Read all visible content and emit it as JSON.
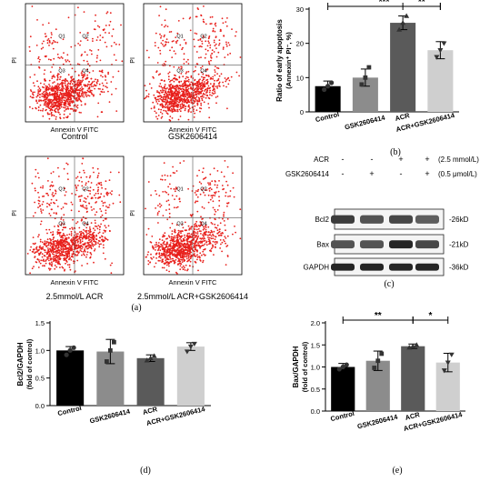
{
  "flow_panels": [
    {
      "caption": "Control",
      "x_axis_label": "Annexin V FITC",
      "y_axis_label": "PI",
      "quadrants": [
        "Q1",
        "Q2",
        "Q3",
        "Q4"
      ]
    },
    {
      "caption": "GSK2606414",
      "x_axis_label": "Annexin V FITC",
      "y_axis_label": "PI",
      "quadrants": [
        "Q1",
        "Q2",
        "Q3",
        "Q4"
      ]
    },
    {
      "caption": "2.5mmol/L ACR",
      "x_axis_label": "Annexin V FITC",
      "y_axis_label": "PI",
      "quadrants": [
        "Q1",
        "Q2",
        "Q3",
        "Q4"
      ]
    },
    {
      "caption": "2.5mmol/L ACR+GSK2606414",
      "x_axis_label": "Annexin V FITC",
      "y_axis_label": "PI",
      "quadrants": [
        "Q1",
        "Q2",
        "Q3",
        "Q4"
      ]
    }
  ],
  "panel_labels": {
    "a": "(a)",
    "b": "(b)",
    "c": "(c)",
    "d": "(d)",
    "e": "(e)"
  },
  "western": {
    "conditions": [
      {
        "label": "ACR",
        "values": [
          "-",
          "-",
          "+",
          "+"
        ],
        "unit": "(2.5 mmol/L)"
      },
      {
        "label": "GSK2606414",
        "values": [
          "-",
          "+",
          "-",
          "+"
        ],
        "unit": "(0.5 μmol/L)"
      }
    ],
    "blots": [
      {
        "protein": "Bcl2",
        "size": "-26kD"
      },
      {
        "protein": "Bax",
        "size": "-21kD"
      },
      {
        "protein": "GAPDH",
        "size": "-36kD"
      }
    ]
  },
  "chart_data": [
    {
      "id": "b",
      "type": "bar",
      "categories": [
        "Control",
        "GSK2606414",
        "ACR",
        "ACR+GSK2606414"
      ],
      "values": [
        7.5,
        10,
        26,
        18
      ],
      "errors": [
        1.5,
        2.5,
        2,
        2.5
      ],
      "points": [
        [
          6.5,
          7.5,
          8.5
        ],
        [
          8,
          10,
          13
        ],
        [
          24,
          26,
          28
        ],
        [
          16,
          18,
          20
        ]
      ],
      "bar_colors": [
        "#000000",
        "#8c8c8c",
        "#5a5a5a",
        "#cfcfcf"
      ],
      "title": "",
      "ylabel": "Ratio of early apoptosis",
      "ylabel_line2": "(Annexin⁺ PI⁻, %)",
      "ylim": [
        0,
        30
      ],
      "yticks": [
        0,
        10,
        20,
        30
      ],
      "significance": [
        {
          "from": 0,
          "to": 3,
          "label": "***"
        },
        {
          "from": 2,
          "to": 3,
          "label": "**"
        }
      ]
    },
    {
      "id": "d",
      "type": "bar",
      "categories": [
        "Control",
        "GSK2606414",
        "ACR",
        "ACR+GSK2606414"
      ],
      "values": [
        1.0,
        0.98,
        0.86,
        1.07
      ],
      "errors": [
        0.07,
        0.22,
        0.06,
        0.07
      ],
      "points": [
        [
          0.92,
          1.0,
          1.05
        ],
        [
          0.8,
          1.0,
          1.15
        ],
        [
          0.82,
          0.86,
          0.9
        ],
        [
          0.98,
          1.07,
          1.12
        ]
      ],
      "bar_colors": [
        "#000000",
        "#8c8c8c",
        "#5a5a5a",
        "#cfcfcf"
      ],
      "title": "",
      "ylabel": "Bcl2/GAPDH",
      "ylabel_line2": "(fold of control)",
      "ylim": [
        0,
        1.5
      ],
      "yticks": [
        0.0,
        0.5,
        1.0,
        1.5
      ],
      "significance": []
    },
    {
      "id": "e",
      "type": "bar",
      "categories": [
        "Control",
        "GSK2606414",
        "ACR",
        "ACR+GSK2606414"
      ],
      "values": [
        1.0,
        1.14,
        1.47,
        1.1
      ],
      "errors": [
        0.08,
        0.22,
        0.05,
        0.21
      ],
      "points": [
        [
          0.95,
          1.0,
          1.05
        ],
        [
          0.98,
          1.14,
          1.3
        ],
        [
          1.44,
          1.47,
          1.5
        ],
        [
          0.92,
          1.1,
          1.28
        ]
      ],
      "bar_colors": [
        "#000000",
        "#8c8c8c",
        "#5a5a5a",
        "#cfcfcf"
      ],
      "title": "",
      "ylabel": "Bax/GAPDH",
      "ylabel_line2": "(fold of control)",
      "ylim": [
        0,
        2.0
      ],
      "yticks": [
        0.0,
        0.5,
        1.0,
        1.5,
        2.0
      ],
      "significance": [
        {
          "from": 0,
          "to": 2,
          "label": "**"
        },
        {
          "from": 2,
          "to": 3,
          "label": "*"
        }
      ]
    }
  ]
}
